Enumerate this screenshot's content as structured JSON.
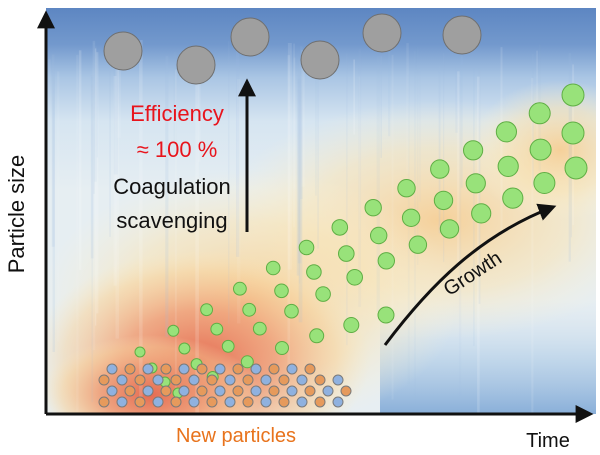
{
  "axes": {
    "y_label": "Particle size",
    "x_label": "Time"
  },
  "annotations": {
    "efficiency": "Efficiency",
    "efficiency_value": "≈ 100 %",
    "coagulation_line1": "Coagulation",
    "coagulation_line2": "scavenging",
    "growth": "Growth",
    "new_particles": "New particles"
  },
  "colors": {
    "efficiency_text": "#e8141c",
    "new_particles_text": "#e8731c",
    "text": "#111111",
    "background_top": "#6d93c9",
    "background_warm": "#f5c98a",
    "background_hot": "#e9785a",
    "large_particle": "#9f9f9f",
    "growing_particle": "#98e27a",
    "new_particle_mix": [
      "#e69a5c",
      "#8fb1df"
    ]
  }
}
